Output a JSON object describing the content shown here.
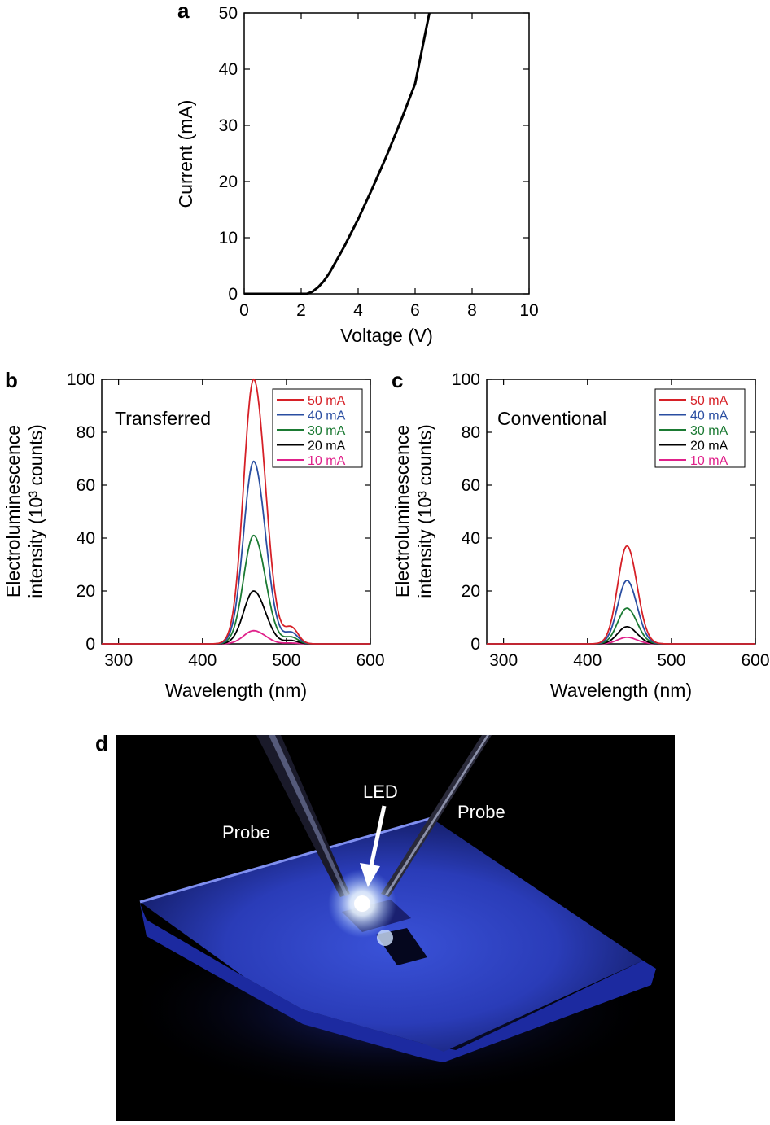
{
  "colors": {
    "50 mA": "#d62027",
    "40 mA": "#2a4ea1",
    "30 mA": "#1b7a33",
    "20 mA": "#000000",
    "10 mA": "#e0218a"
  },
  "panel_a": {
    "letter": "a",
    "chart_data": {
      "type": "line",
      "xlabel": "Voltage (V)",
      "ylabel": "Current (mA)",
      "xlim": [
        0,
        10
      ],
      "ylim": [
        0,
        50
      ],
      "xticks": [
        0,
        2,
        4,
        6,
        8,
        10
      ],
      "yticks": [
        0,
        10,
        20,
        30,
        40,
        50
      ],
      "grid": false,
      "series": [
        {
          "x": [
            0,
            2.2,
            2.4,
            2.6,
            2.8,
            3.0,
            3.5,
            4.0,
            4.5,
            5.0,
            5.5,
            6.0,
            6.5
          ],
          "y": [
            0,
            0,
            0.4,
            1.2,
            2.3,
            3.8,
            8.3,
            13.3,
            18.8,
            24.6,
            30.8,
            37.4,
            50
          ]
        }
      ]
    }
  },
  "panel_b": {
    "letter": "b",
    "annotation": "Transferred",
    "chart_data": {
      "type": "line",
      "xlabel": "Wavelength (nm)",
      "ylabel_line1": "Electroluminescence",
      "ylabel_line2": "intensity (10³ counts)",
      "xlim": [
        280,
        600
      ],
      "ylim": [
        0,
        100
      ],
      "xticks": [
        300,
        400,
        500,
        600
      ],
      "yticks": [
        0,
        20,
        40,
        60,
        80,
        100
      ],
      "grid": false,
      "legend_placement": "top-right",
      "peak_nm": 461,
      "series": [
        {
          "name": "50 mA",
          "peak": 100
        },
        {
          "name": "40 mA",
          "peak": 69
        },
        {
          "name": "30 mA",
          "peak": 41
        },
        {
          "name": "20 mA",
          "peak": 20
        },
        {
          "name": "10 mA",
          "peak": 5
        }
      ]
    }
  },
  "panel_c": {
    "letter": "c",
    "annotation": "Conventional",
    "chart_data": {
      "type": "line",
      "xlabel": "Wavelength (nm)",
      "ylabel_line1": "Electroluminescence",
      "ylabel_line2": "intensity (10³ counts)",
      "xlim": [
        280,
        600
      ],
      "ylim": [
        0,
        100
      ],
      "xticks": [
        300,
        400,
        500,
        600
      ],
      "yticks": [
        0,
        20,
        40,
        60,
        80,
        100
      ],
      "grid": false,
      "legend_placement": "top-right",
      "peak_nm": 447,
      "series": [
        {
          "name": "50 mA",
          "peak": 37
        },
        {
          "name": "40 mA",
          "peak": 24
        },
        {
          "name": "30 mA",
          "peak": 13.5
        },
        {
          "name": "20 mA",
          "peak": 6.5
        },
        {
          "name": "10 mA",
          "peak": 2.5
        }
      ]
    }
  },
  "panel_d": {
    "letter": "d",
    "labels": {
      "probe_left": "Probe",
      "led": "LED",
      "probe_right": "Probe"
    }
  }
}
